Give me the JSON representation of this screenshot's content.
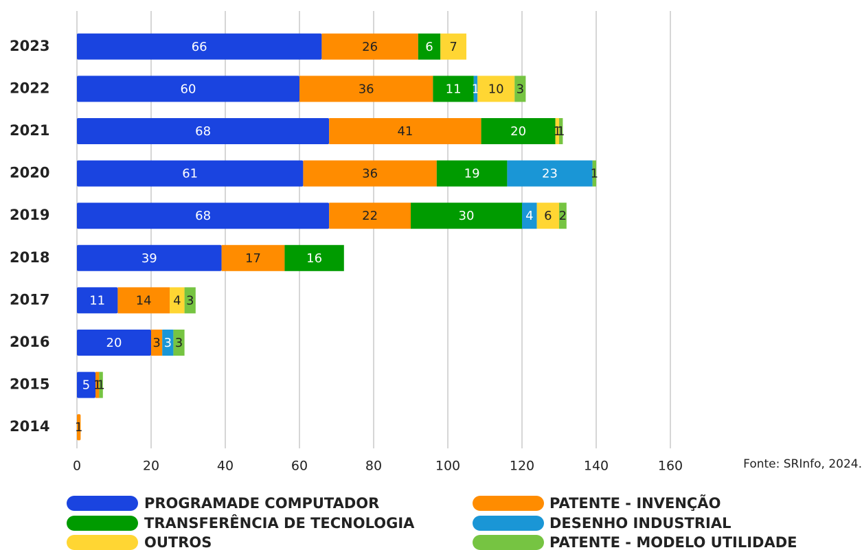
{
  "chart_data": {
    "type": "stacked-barh",
    "categories": [
      "2023",
      "2022",
      "2021",
      "2020",
      "2019",
      "2018",
      "2017",
      "2016",
      "2015",
      "2014"
    ],
    "series": [
      {
        "name": "PROGRAMADE COMPUTADOR",
        "color": "#1a44e0",
        "values": [
          66,
          60,
          68,
          61,
          68,
          39,
          11,
          20,
          5,
          null
        ]
      },
      {
        "name": "PATENTE - INVENÇÃO",
        "color": "#ff8c00",
        "values": [
          26,
          36,
          41,
          36,
          22,
          17,
          14,
          3,
          1,
          1
        ]
      },
      {
        "name": "TRANSFERÊNCIA DE TECNOLOGIA",
        "color": "#009b00",
        "values": [
          6,
          11,
          20,
          19,
          30,
          16,
          null,
          null,
          null,
          null
        ]
      },
      {
        "name": "DESENHO INDUSTRIAL",
        "color": "#1a96d6",
        "values": [
          null,
          1,
          null,
          23,
          4,
          null,
          null,
          3,
          null,
          null
        ]
      },
      {
        "name": "OUTROS",
        "color": "#ffd633",
        "values": [
          7,
          10,
          1,
          null,
          6,
          null,
          4,
          null,
          null,
          null
        ]
      },
      {
        "name": "PATENTE - MODELO UTILIDADE",
        "color": "#76c442",
        "values": [
          null,
          3,
          1,
          1,
          2,
          null,
          3,
          3,
          1,
          null
        ]
      }
    ],
    "xlim": [
      0,
      160
    ],
    "xticks": [
      0,
      20,
      40,
      60,
      80,
      100,
      120,
      140,
      160
    ],
    "grid": true,
    "annotation": "Fonte: SRInfo, 2024."
  }
}
